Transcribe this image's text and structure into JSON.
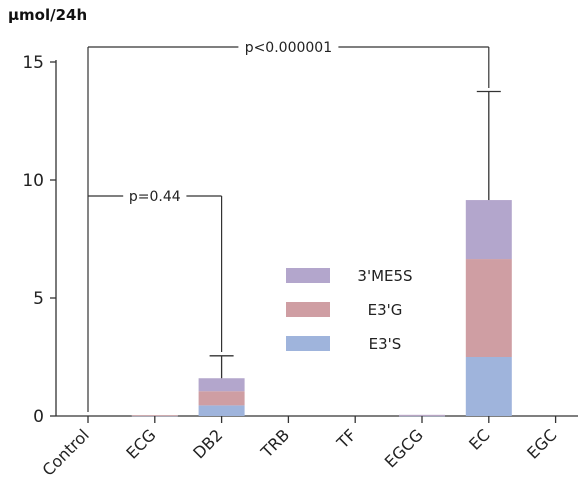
{
  "chart_data": {
    "type": "bar",
    "stacked": true,
    "ylabel": "µmol/24h",
    "ylim": [
      0,
      15
    ],
    "yticks": [
      "0",
      "5",
      "10",
      "15"
    ],
    "categories": [
      "Control",
      "ECG",
      "DB2",
      "TRB",
      "TF",
      "EGCG",
      "EC",
      "EGC"
    ],
    "series": [
      {
        "name": "E3'S",
        "color": "#9fb4dc",
        "values": [
          0,
          0.02,
          0.45,
          0,
          0,
          0.02,
          2.5,
          0
        ]
      },
      {
        "name": "E3'G",
        "color": "#cf9ea3",
        "values": [
          0,
          0.01,
          0.6,
          0,
          0,
          0.02,
          4.15,
          0
        ]
      },
      {
        "name": "3'ME5S",
        "color": "#b3a6cc",
        "values": [
          0,
          0,
          0.55,
          0,
          0,
          0.01,
          2.5,
          0
        ]
      }
    ],
    "error_bars": {
      "DB2": 2.55,
      "EC": 13.75
    },
    "legend_order": [
      "3'ME5S",
      "E3'G",
      "E3'S"
    ],
    "legend_position": "center",
    "annotations": [
      {
        "text": "p<0.000001",
        "from": "Control",
        "to": "EC"
      },
      {
        "text": "p=0.44",
        "from": "Control",
        "to": "DB2"
      }
    ],
    "grid": false
  }
}
